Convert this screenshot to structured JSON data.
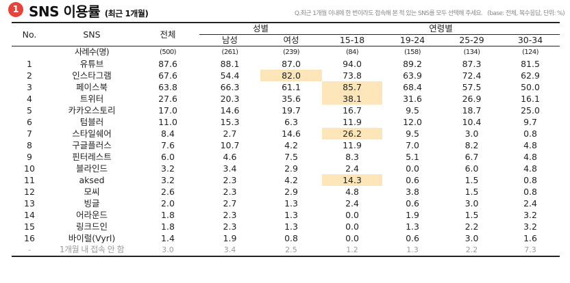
{
  "header": {
    "badge": "1",
    "title": "SNS 이용률",
    "title_sub": "(최근 1개월)",
    "question": "Q.최근 1개월 이내에 한 번이라도 접속해 본 적 있는 SNS를 모두 선택해 주세요.",
    "base_note": "(base: 전체, 복수응답, 단위: %)"
  },
  "table": {
    "col_no": "No.",
    "col_sns": "SNS",
    "col_total": "전체",
    "group_gender": "성별",
    "group_age": "연령별",
    "sub_cols": [
      "남성",
      "여성",
      "15-18",
      "19-24",
      "25-29",
      "30-34"
    ],
    "base_row": {
      "no": "",
      "name": "사례수(명)",
      "values": [
        "(500)",
        "(261)",
        "(239)",
        "(84)",
        "(158)",
        "(134)",
        "(124)"
      ]
    },
    "rows": [
      {
        "no": "1",
        "name": "유튜브",
        "values": [
          "87.6",
          "88.1",
          "87.0",
          "94.0",
          "89.2",
          "87.3",
          "81.5"
        ]
      },
      {
        "no": "2",
        "name": "인스타그램",
        "values": [
          "67.6",
          "54.4",
          "82.0",
          "73.8",
          "63.9",
          "72.4",
          "62.9"
        ]
      },
      {
        "no": "3",
        "name": "페이스북",
        "values": [
          "63.8",
          "66.3",
          "61.1",
          "85.7",
          "68.4",
          "57.5",
          "50.0"
        ]
      },
      {
        "no": "4",
        "name": "트위터",
        "values": [
          "27.6",
          "20.3",
          "35.6",
          "38.1",
          "31.6",
          "26.9",
          "16.1"
        ]
      },
      {
        "no": "5",
        "name": "카카오스토리",
        "values": [
          "17.0",
          "14.6",
          "19.7",
          "16.7",
          "9.5",
          "18.7",
          "25.0"
        ]
      },
      {
        "no": "6",
        "name": "텀블러",
        "values": [
          "11.0",
          "15.3",
          "6.3",
          "11.9",
          "12.0",
          "10.4",
          "9.7"
        ]
      },
      {
        "no": "7",
        "name": "스타일쉐어",
        "values": [
          "8.4",
          "2.7",
          "14.6",
          "26.2",
          "9.5",
          "3.0",
          "0.8"
        ]
      },
      {
        "no": "8",
        "name": "구글플러스",
        "values": [
          "7.6",
          "10.7",
          "4.2",
          "11.9",
          "7.0",
          "8.2",
          "4.8"
        ]
      },
      {
        "no": "9",
        "name": "핀터레스트",
        "values": [
          "6.0",
          "4.6",
          "7.5",
          "8.3",
          "5.1",
          "6.7",
          "4.8"
        ]
      },
      {
        "no": "10",
        "name": "블라인드",
        "values": [
          "3.2",
          "3.4",
          "2.9",
          "2.4",
          "0.0",
          "6.0",
          "4.8"
        ]
      },
      {
        "no": "11",
        "name": "aksed",
        "values": [
          "3.2",
          "2.3",
          "4.2",
          "14.3",
          "0.6",
          "1.5",
          "0.8"
        ]
      },
      {
        "no": "12",
        "name": "모씨",
        "values": [
          "2.6",
          "2.3",
          "2.9",
          "4.8",
          "3.8",
          "1.5",
          "0.8"
        ]
      },
      {
        "no": "13",
        "name": "빙글",
        "values": [
          "2.0",
          "2.7",
          "1.3",
          "2.4",
          "0.6",
          "3.0",
          "2.4"
        ]
      },
      {
        "no": "14",
        "name": "어라운드",
        "values": [
          "1.8",
          "2.3",
          "1.3",
          "0.0",
          "1.9",
          "1.5",
          "3.2"
        ]
      },
      {
        "no": "15",
        "name": "링크드인",
        "values": [
          "1.8",
          "2.3",
          "1.3",
          "0.0",
          "1.3",
          "2.2",
          "3.2"
        ]
      },
      {
        "no": "16",
        "name": "바이럴(Vyrl)",
        "values": [
          "1.4",
          "1.9",
          "0.8",
          "0.0",
          "0.6",
          "3.0",
          "1.6"
        ]
      },
      {
        "no": "-",
        "name": "1개월 내 접속 안 함",
        "values": [
          "3.0",
          "3.4",
          "2.5",
          "1.2",
          "1.3",
          "2.2",
          "7.3"
        ]
      }
    ],
    "highlights": [
      {
        "row": 1,
        "col": 2
      },
      {
        "row": 2,
        "col": 3
      },
      {
        "row": 3,
        "col": 3
      },
      {
        "row": 6,
        "col": 3
      },
      {
        "row": 10,
        "col": 3
      }
    ],
    "highlight_color": "#fbe5b9"
  }
}
